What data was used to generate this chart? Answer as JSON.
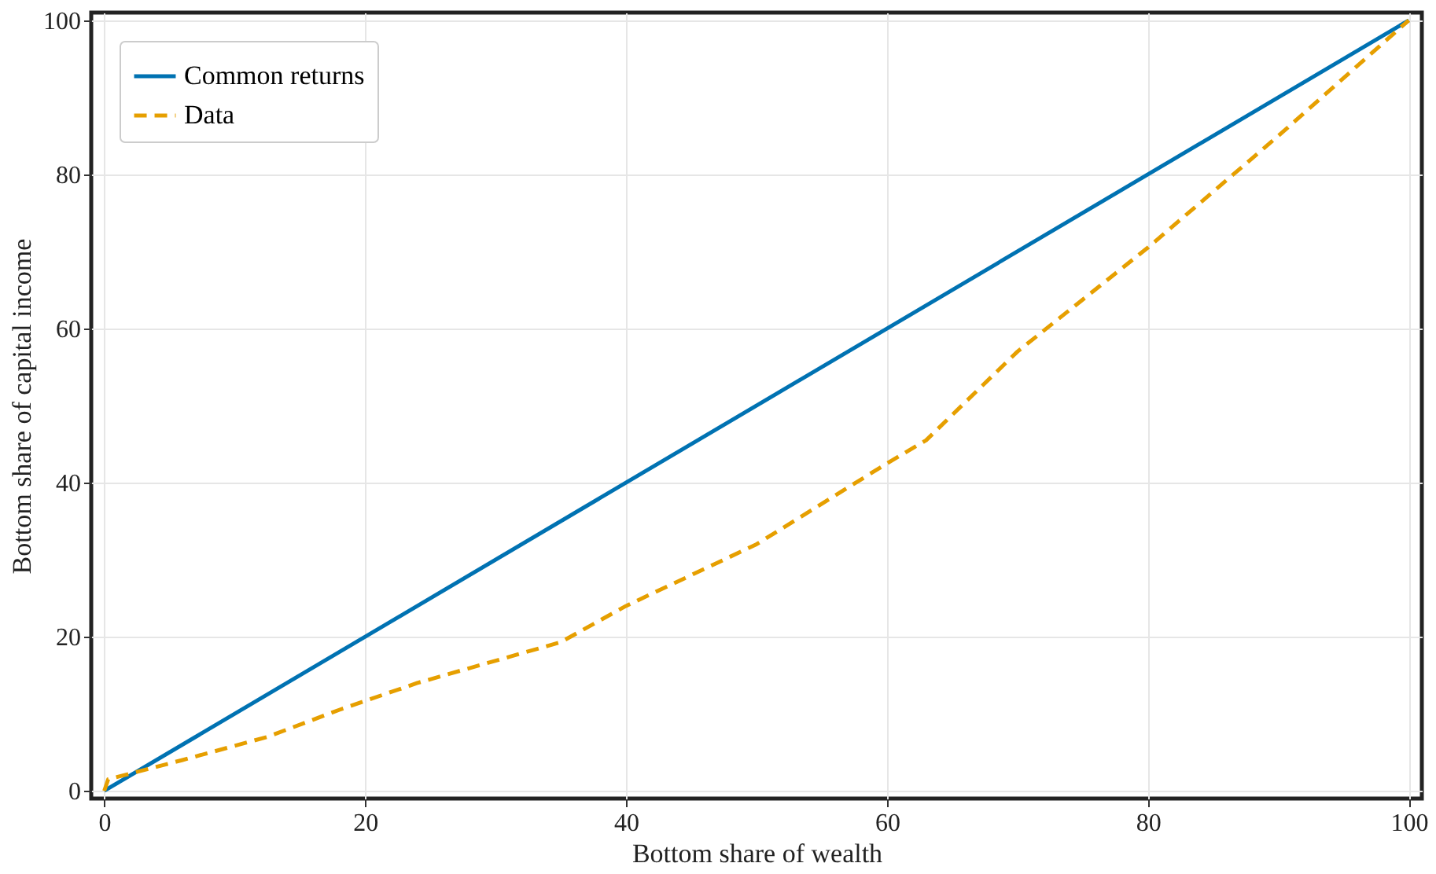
{
  "chart_data": {
    "type": "line",
    "xlabel": "Bottom share of wealth",
    "ylabel": "Bottom share of capital income",
    "xlim": [
      -1,
      101
    ],
    "ylim": [
      -1,
      101
    ],
    "xticks": [
      0,
      20,
      40,
      60,
      80,
      100
    ],
    "yticks": [
      0,
      20,
      40,
      60,
      80,
      100
    ],
    "grid": true,
    "legend": "top left",
    "series": [
      {
        "name": "Common returns",
        "color": "#0072b2",
        "line_style": "solid",
        "x": [
          0,
          100
        ],
        "values": [
          0,
          100
        ]
      },
      {
        "name": "Data",
        "color": "#e69f00",
        "line_style": "dashed",
        "x": [
          0,
          0.3,
          6,
          12.5,
          18,
          24,
          35,
          40,
          50,
          60,
          63,
          70,
          80,
          90,
          100
        ],
        "values": [
          0,
          1.5,
          4,
          7,
          10.5,
          14,
          19.3,
          24,
          32,
          42.5,
          45.5,
          57,
          70.5,
          85,
          100
        ]
      }
    ]
  }
}
